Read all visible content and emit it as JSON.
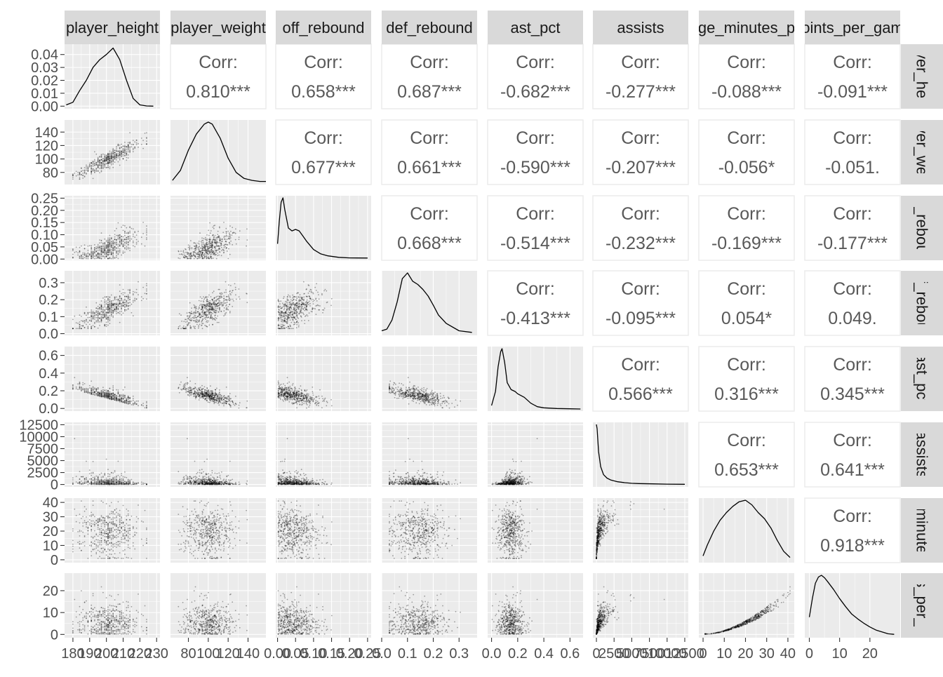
{
  "chart_data": {
    "type": "scatter",
    "subtype": "scatterplot-matrix",
    "title": "",
    "variables": [
      "player_height",
      "player_weight",
      "off_rebound",
      "def_rebound",
      "ast_pct",
      "assists",
      "average_minutes_played",
      "points_per_game"
    ],
    "column_strip_labels": [
      "player_height",
      "player_weight",
      "off_rebound",
      "def_rebound",
      "ast_pct",
      "assists",
      "ge_minutes_p",
      "oints_per_gam"
    ],
    "row_strip_labels": [
      "ayer_heig",
      "ayer_weig",
      "ff_rebour",
      "ef_rebour",
      "ast_pct",
      "assists",
      "_minutes",
      "ts_per_g"
    ],
    "corr_label": "Corr:",
    "correlations": [
      {
        "row": 0,
        "col": 1,
        "value": "0.810***"
      },
      {
        "row": 0,
        "col": 2,
        "value": "0.658***"
      },
      {
        "row": 0,
        "col": 3,
        "value": "0.687***"
      },
      {
        "row": 0,
        "col": 4,
        "value": "-0.682***"
      },
      {
        "row": 0,
        "col": 5,
        "value": "-0.277***"
      },
      {
        "row": 0,
        "col": 6,
        "value": "-0.088***"
      },
      {
        "row": 0,
        "col": 7,
        "value": "-0.091***"
      },
      {
        "row": 1,
        "col": 2,
        "value": "0.677***"
      },
      {
        "row": 1,
        "col": 3,
        "value": "0.661***"
      },
      {
        "row": 1,
        "col": 4,
        "value": "-0.590***"
      },
      {
        "row": 1,
        "col": 5,
        "value": "-0.207***"
      },
      {
        "row": 1,
        "col": 6,
        "value": "-0.056*"
      },
      {
        "row": 1,
        "col": 7,
        "value": "-0.051."
      },
      {
        "row": 2,
        "col": 3,
        "value": "0.668***"
      },
      {
        "row": 2,
        "col": 4,
        "value": "-0.514***"
      },
      {
        "row": 2,
        "col": 5,
        "value": "-0.232***"
      },
      {
        "row": 2,
        "col": 6,
        "value": "-0.169***"
      },
      {
        "row": 2,
        "col": 7,
        "value": "-0.177***"
      },
      {
        "row": 3,
        "col": 4,
        "value": "-0.413***"
      },
      {
        "row": 3,
        "col": 5,
        "value": "-0.095***"
      },
      {
        "row": 3,
        "col": 6,
        "value": "0.054*"
      },
      {
        "row": 3,
        "col": 7,
        "value": "0.049."
      },
      {
        "row": 4,
        "col": 5,
        "value": "0.566***"
      },
      {
        "row": 4,
        "col": 6,
        "value": "0.316***"
      },
      {
        "row": 4,
        "col": 7,
        "value": "0.345***"
      },
      {
        "row": 5,
        "col": 6,
        "value": "0.653***"
      },
      {
        "row": 5,
        "col": 7,
        "value": "0.641***"
      },
      {
        "row": 6,
        "col": 7,
        "value": "0.918***"
      }
    ],
    "x_axes": [
      {
        "range": [
          175,
          232
        ],
        "ticks": [
          180,
          190,
          200,
          210,
          220,
          230
        ],
        "tick_labels": [
          "180",
          "190",
          "200",
          "210",
          "220",
          "230"
        ]
      },
      {
        "range": [
          62,
          158
        ],
        "ticks": [
          80,
          100,
          120,
          140
        ],
        "tick_labels": [
          "80",
          "100",
          "120",
          "140"
        ]
      },
      {
        "range": [
          -0.005,
          0.26
        ],
        "ticks": [
          0.0,
          0.05,
          0.1,
          0.15,
          0.2,
          0.25
        ],
        "tick_labels": [
          "0.00",
          "0.05",
          "0.10",
          "0.15",
          "0.20",
          "0.25"
        ]
      },
      {
        "range": [
          0.0,
          0.37
        ],
        "ticks": [
          0.0,
          0.1,
          0.2,
          0.3
        ],
        "tick_labels": [
          "0.0",
          "0.1",
          "0.2",
          "0.3"
        ]
      },
      {
        "range": [
          -0.03,
          0.7
        ],
        "ticks": [
          0.0,
          0.2,
          0.4,
          0.6
        ],
        "tick_labels": [
          "0.0",
          "0.2",
          "0.4",
          "0.6"
        ]
      },
      {
        "range": [
          -500,
          13000
        ],
        "ticks": [
          0,
          2500,
          5000,
          7500,
          10000,
          12500
        ],
        "tick_labels": [
          "0",
          "2500",
          "5000",
          "7500",
          "10000",
          "12500"
        ]
      },
      {
        "range": [
          -2,
          43
        ],
        "ticks": [
          0,
          10,
          20,
          30,
          40
        ],
        "tick_labels": [
          "0",
          "10",
          "20",
          "30",
          "40"
        ]
      },
      {
        "range": [
          -1.5,
          30
        ],
        "ticks": [
          0,
          10,
          20
        ],
        "tick_labels": [
          "0",
          "10",
          "20"
        ]
      }
    ],
    "y_axes": [
      {
        "range": [
          -0.002,
          0.048
        ],
        "ticks": [
          0.0,
          0.01,
          0.02,
          0.03,
          0.04
        ],
        "tick_labels": [
          "0.00",
          "0.01",
          "0.02",
          "0.03",
          "0.04"
        ]
      },
      {
        "range": [
          62,
          158
        ],
        "ticks": [
          80,
          100,
          120,
          140
        ],
        "tick_labels": [
          "80",
          "100",
          "120",
          "140"
        ]
      },
      {
        "range": [
          -0.005,
          0.26
        ],
        "ticks": [
          0.0,
          0.05,
          0.1,
          0.15,
          0.2,
          0.25
        ],
        "tick_labels": [
          "0.00",
          "0.05",
          "0.10",
          "0.15",
          "0.20",
          "0.25"
        ]
      },
      {
        "range": [
          -0.01,
          0.37
        ],
        "ticks": [
          0.0,
          0.1,
          0.2,
          0.3
        ],
        "tick_labels": [
          "0.0",
          "0.1",
          "0.2",
          "0.3"
        ]
      },
      {
        "range": [
          -0.03,
          0.7
        ],
        "ticks": [
          0.0,
          0.2,
          0.4,
          0.6
        ],
        "tick_labels": [
          "0.0",
          "0.2",
          "0.4",
          "0.6"
        ]
      },
      {
        "range": [
          -500,
          13000
        ],
        "ticks": [
          0,
          2500,
          5000,
          7500,
          10000,
          12500
        ],
        "tick_labels": [
          "0",
          "2500",
          "5000",
          "7500",
          "10000",
          "12500"
        ]
      },
      {
        "range": [
          -2,
          43
        ],
        "ticks": [
          0,
          10,
          20,
          30,
          40
        ],
        "tick_labels": [
          "0",
          "10",
          "20",
          "30",
          "40"
        ]
      },
      {
        "range": [
          -1.5,
          28
        ],
        "ticks": [
          0,
          10,
          20
        ],
        "tick_labels": [
          "0",
          "10",
          "20"
        ]
      }
    ],
    "densities": [
      {
        "x": [
          176,
          180,
          184,
          188,
          192,
          196,
          200,
          204,
          208,
          212,
          216,
          220,
          224,
          228
        ],
        "y": [
          0.001,
          0.003,
          0.012,
          0.02,
          0.03,
          0.036,
          0.04,
          0.045,
          0.036,
          0.02,
          0.006,
          0.001,
          0.0002,
          0.0
        ]
      },
      {
        "x": [
          64,
          72,
          80,
          88,
          96,
          100,
          104,
          112,
          120,
          128,
          136,
          144,
          152,
          158
        ],
        "y": [
          0.001,
          0.006,
          0.016,
          0.024,
          0.029,
          0.03,
          0.029,
          0.022,
          0.012,
          0.005,
          0.002,
          0.001,
          0.0005,
          0.0005
        ]
      },
      {
        "x": [
          0.0,
          0.005,
          0.01,
          0.015,
          0.02,
          0.03,
          0.04,
          0.05,
          0.06,
          0.07,
          0.08,
          0.1,
          0.12,
          0.14,
          0.17,
          0.2,
          0.25
        ],
        "y": [
          5,
          13,
          19.5,
          21,
          17,
          10.5,
          9.5,
          10,
          9.5,
          7.8,
          6,
          3,
          1.5,
          0.8,
          0.3,
          0.1,
          0.05
        ]
      },
      {
        "x": [
          0.0,
          0.02,
          0.04,
          0.06,
          0.08,
          0.1,
          0.12,
          0.14,
          0.16,
          0.18,
          0.2,
          0.22,
          0.25,
          0.3,
          0.35
        ],
        "y": [
          0.3,
          0.5,
          1.6,
          3.8,
          6.6,
          7.3,
          6.3,
          5.9,
          5.3,
          4.5,
          3.4,
          2.2,
          1.2,
          0.3,
          0.1
        ]
      },
      {
        "x": [
          0.0,
          0.03,
          0.05,
          0.07,
          0.08,
          0.1,
          0.12,
          0.15,
          0.18,
          0.2,
          0.25,
          0.3,
          0.35,
          0.4,
          0.5,
          0.6,
          0.68
        ],
        "y": [
          0.6,
          3,
          7.2,
          9.8,
          10.3,
          8,
          4.5,
          3.3,
          3,
          2.6,
          2,
          1,
          0.4,
          0.2,
          0.08,
          0.03,
          0.0
        ]
      },
      {
        "x": [
          0,
          100,
          300,
          600,
          1000,
          1500,
          2000,
          3000,
          4000,
          5000,
          6000,
          8000,
          10000,
          12500
        ],
        "y": [
          1.0,
          0.93,
          0.55,
          0.3,
          0.17,
          0.11,
          0.08,
          0.05,
          0.035,
          0.025,
          0.02,
          0.015,
          0.01,
          0.008
        ]
      },
      {
        "x": [
          0,
          2,
          5,
          8,
          11,
          14,
          17,
          20,
          23,
          26,
          29,
          32,
          35,
          38,
          41
        ],
        "y": [
          0.003,
          0.01,
          0.019,
          0.026,
          0.031,
          0.035,
          0.038,
          0.039,
          0.036,
          0.031,
          0.027,
          0.021,
          0.013,
          0.006,
          0.002
        ]
      },
      {
        "x": [
          0,
          1,
          2,
          3,
          4,
          5,
          6,
          8,
          10,
          12,
          14,
          16,
          18,
          20,
          22,
          24,
          26,
          28
        ],
        "y": [
          0.03,
          0.06,
          0.085,
          0.095,
          0.098,
          0.094,
          0.088,
          0.075,
          0.06,
          0.047,
          0.035,
          0.027,
          0.02,
          0.014,
          0.009,
          0.006,
          0.003,
          0.002
        ]
      }
    ],
    "grid": true,
    "legend": "none"
  }
}
